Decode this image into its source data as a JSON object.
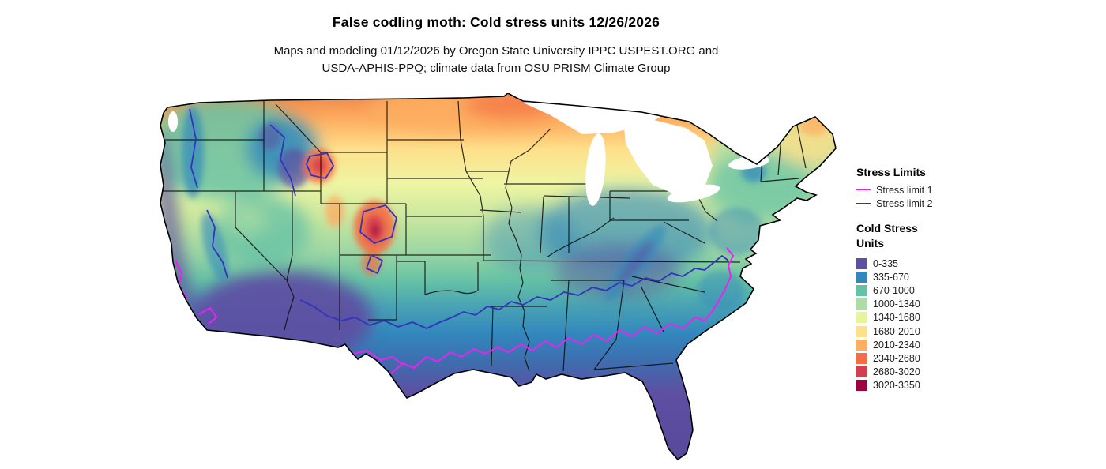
{
  "title": "False codling moth: Cold stress units 12/26/2026",
  "subtitle_line1": "Maps and modeling 01/12/2026 by Oregon State University IPPC USPEST.ORG and",
  "subtitle_line2": "USDA-APHIS-PPQ; climate data from OSU PRISM Climate Group",
  "legend": {
    "stress_limits": {
      "title": "Stress Limits",
      "items": [
        {
          "label": "Stress limit 1",
          "color": "#ee22ee"
        },
        {
          "label": "Stress limit 2",
          "color": "#3434bb"
        }
      ]
    },
    "cold_stress_units": {
      "title": "Cold Stress Units",
      "items": [
        {
          "label": "0-335",
          "color": "#5e4fa2"
        },
        {
          "label": "335-670",
          "color": "#3288bd"
        },
        {
          "label": "670-1000",
          "color": "#66c2a5"
        },
        {
          "label": "1000-1340",
          "color": "#abdda4"
        },
        {
          "label": "1340-1680",
          "color": "#e6f598"
        },
        {
          "label": "1680-2010",
          "color": "#fee08b"
        },
        {
          "label": "2010-2340",
          "color": "#fdae61"
        },
        {
          "label": "2340-2680",
          "color": "#f46d43"
        },
        {
          "label": "2680-3020",
          "color": "#d53e4f"
        },
        {
          "label": "3020-3350",
          "color": "#9e0142"
        }
      ]
    }
  }
}
